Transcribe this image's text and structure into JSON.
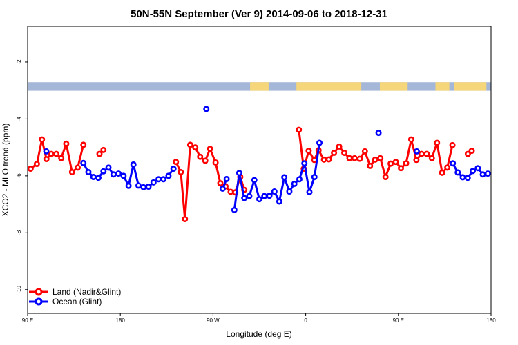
{
  "chart_data": {
    "type": "line",
    "title": "50N-55N September (Ver 9)   2014-09-06 to 2018-12-31",
    "xlabel": "Longitude (deg E)",
    "ylabel": "XCO2 - MLO trend (ppm)",
    "xlim": [
      0,
      360
    ],
    "ylim": [
      -10.83,
      -0.74
    ],
    "x_ticks": [
      {
        "value": 0,
        "label": "90 E"
      },
      {
        "value": 72,
        "label": "180"
      },
      {
        "value": 144,
        "label": "90 W"
      },
      {
        "value": 216,
        "label": "0"
      },
      {
        "value": 288,
        "label": "90 E"
      },
      {
        "value": 360,
        "label": "180"
      }
    ],
    "y_ticks": [
      {
        "value": -2,
        "label": "-2"
      },
      {
        "value": -4,
        "label": "-4"
      },
      {
        "value": -6,
        "label": "-6"
      },
      {
        "value": -8,
        "label": "-8"
      },
      {
        "value": -10,
        "label": "-10"
      }
    ],
    "land_mask_band": {
      "y_top": -2.71,
      "y_bottom": -3.01,
      "ocean_color": "#a4b7d8",
      "land_color": "#f5d67a"
    },
    "legend": {
      "position": "bottom-left"
    },
    "series": [
      {
        "name": "Land (Nadir&Glint)",
        "color": "#ff0000",
        "points": [
          [
            2.3,
            -5.75
          ],
          [
            7.2,
            -5.58
          ],
          [
            11.1,
            -4.72
          ],
          [
            14.6,
            -5.41
          ],
          [
            18.4,
            -5.23
          ],
          [
            22.3,
            -5.23
          ],
          [
            26.1,
            -5.38
          ],
          [
            30.0,
            -4.87
          ],
          [
            34.5,
            -5.87
          ],
          [
            38.9,
            -5.71
          ],
          [
            43.3,
            -4.91
          ],
          [
            null,
            null
          ],
          [
            55.8,
            -5.23
          ],
          [
            58.9,
            -5.09
          ],
          [
            null,
            null
          ],
          [
            115.2,
            -5.51
          ],
          [
            119.0,
            -5.87
          ],
          [
            122.2,
            -7.52
          ],
          [
            126.3,
            -4.91
          ],
          [
            130.2,
            -5.0
          ],
          [
            134.0,
            -5.33
          ],
          [
            138.0,
            -5.47
          ],
          [
            141.7,
            -5.05
          ],
          [
            146.0,
            -5.53
          ],
          [
            149.7,
            -6.26
          ],
          [
            153.7,
            -6.37
          ],
          [
            157.7,
            -6.56
          ],
          [
            161.3,
            -6.58
          ],
          [
            165.2,
            -6.04
          ],
          [
            168.3,
            -6.49
          ],
          [
            null,
            null
          ],
          [
            210.7,
            -4.38
          ],
          [
            214.5,
            -5.75
          ],
          [
            218.3,
            -5.12
          ],
          [
            222.7,
            -5.44
          ],
          [
            226.0,
            -5.1
          ],
          [
            230.2,
            -5.43
          ],
          [
            234.0,
            -5.42
          ],
          [
            238.0,
            -5.19
          ],
          [
            242.0,
            -4.97
          ],
          [
            246.0,
            -5.19
          ],
          [
            250.0,
            -5.38
          ],
          [
            254.0,
            -5.38
          ],
          [
            258.0,
            -5.4
          ],
          [
            262.0,
            -5.14
          ],
          [
            266.0,
            -5.65
          ],
          [
            270.0,
            -5.43
          ],
          [
            274.0,
            -5.38
          ],
          [
            278.0,
            -6.04
          ],
          [
            282.0,
            -5.57
          ],
          [
            286.0,
            -5.51
          ],
          [
            290.0,
            -5.73
          ],
          [
            294.0,
            -5.56
          ],
          [
            298.0,
            -4.72
          ],
          [
            302.0,
            -5.44
          ],
          [
            306.0,
            -5.23
          ],
          [
            310.0,
            -5.23
          ],
          [
            314.0,
            -5.38
          ],
          [
            318.0,
            -4.84
          ],
          [
            322.0,
            -5.89
          ],
          [
            326.0,
            -5.71
          ],
          [
            330.0,
            -4.92
          ],
          [
            null,
            null
          ],
          [
            342.0,
            -5.23
          ],
          [
            345.0,
            -5.12
          ]
        ]
      },
      {
        "name": "Ocean (Glint)",
        "color": "#0000ff",
        "points": [
          [
            14.5,
            -5.14
          ],
          [
            null,
            null
          ],
          [
            43.3,
            -5.55
          ],
          [
            47.2,
            -5.87
          ],
          [
            51.1,
            -6.04
          ],
          [
            55.0,
            -6.07
          ],
          [
            58.9,
            -5.84
          ],
          [
            62.8,
            -5.71
          ],
          [
            66.7,
            -5.95
          ],
          [
            70.6,
            -5.92
          ],
          [
            74.5,
            -6.0
          ],
          [
            78.4,
            -6.35
          ],
          [
            82.2,
            -5.6
          ],
          [
            86.1,
            -6.34
          ],
          [
            90.0,
            -6.4
          ],
          [
            93.9,
            -6.38
          ],
          [
            97.8,
            -6.23
          ],
          [
            101.7,
            -6.12
          ],
          [
            105.5,
            -6.12
          ],
          [
            109.4,
            -6.0
          ],
          [
            113.3,
            -5.75
          ],
          [
            null,
            null
          ],
          [
            138.8,
            -3.65
          ],
          [
            null,
            null
          ],
          [
            151.5,
            -6.45
          ],
          [
            154.6,
            -6.11
          ],
          [
            null,
            null
          ],
          [
            160.6,
            -7.2
          ],
          [
            164.4,
            -5.9
          ],
          [
            168.3,
            -6.78
          ],
          [
            172.2,
            -6.71
          ],
          [
            176.1,
            -6.15
          ],
          [
            180.0,
            -6.82
          ],
          [
            183.9,
            -6.71
          ],
          [
            187.8,
            -6.7
          ],
          [
            191.7,
            -6.55
          ],
          [
            195.5,
            -6.9
          ],
          [
            199.4,
            -6.05
          ],
          [
            203.3,
            -6.55
          ],
          [
            207.2,
            -6.28
          ],
          [
            211.1,
            -6.12
          ],
          [
            215.0,
            -5.56
          ],
          [
            218.9,
            -6.57
          ],
          [
            222.8,
            -6.04
          ],
          [
            226.7,
            -4.84
          ],
          [
            null,
            null
          ],
          [
            272.6,
            -4.49
          ],
          [
            null,
            null
          ],
          [
            302.3,
            -5.14
          ],
          [
            null,
            null
          ],
          [
            330.3,
            -5.56
          ],
          [
            334.1,
            -5.88
          ],
          [
            338.0,
            -6.05
          ],
          [
            341.9,
            -6.07
          ],
          [
            345.8,
            -5.83
          ],
          [
            349.7,
            -5.73
          ],
          [
            353.6,
            -5.95
          ],
          [
            357.5,
            -5.92
          ]
        ]
      }
    ]
  }
}
